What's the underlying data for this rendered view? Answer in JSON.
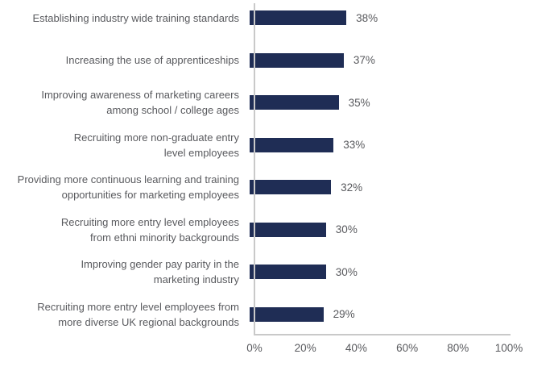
{
  "chart_data": {
    "type": "bar",
    "orientation": "horizontal",
    "title": "",
    "xlabel": "",
    "ylabel": "",
    "xlim": [
      0,
      100
    ],
    "grid": "off",
    "legend": "none",
    "categories": [
      [
        "Establishing industry wide training standards"
      ],
      [
        "Increasing the use of apprenticeships"
      ],
      [
        "Improving awareness of marketing careers",
        "among school / college ages"
      ],
      [
        "Recruiting more non-graduate entry",
        "level employees"
      ],
      [
        "Providing more continuous learning and training",
        "opportunities for marketing employees"
      ],
      [
        "Recruiting more entry level employees",
        "from ethni minority backgrounds"
      ],
      [
        "Improving gender pay parity in the",
        "marketing industry"
      ],
      [
        "Recruiting more entry level employees from",
        "more diverse UK regional backgrounds"
      ]
    ],
    "values": [
      38,
      37,
      35,
      33,
      32,
      30,
      30,
      29
    ],
    "value_labels": [
      "38%",
      "37%",
      "35%",
      "33%",
      "32%",
      "30%",
      "30%",
      "29%"
    ],
    "x_tick_labels": [
      "0%",
      "20%",
      "40%",
      "60%",
      "80%",
      "100%"
    ],
    "x_tick_values": [
      0,
      20,
      40,
      60,
      80,
      100
    ],
    "colors": {
      "bar": "#1f2d55",
      "label_text": "#595a5e",
      "axis_line": "#c9c9c9"
    }
  }
}
